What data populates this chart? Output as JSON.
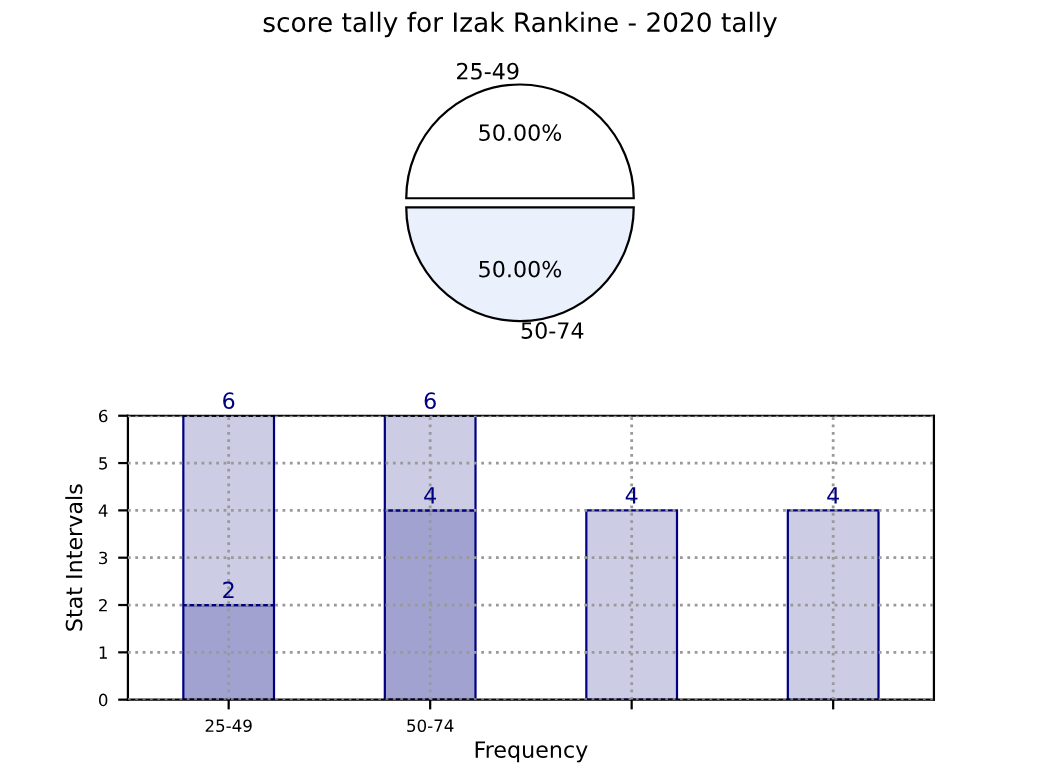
{
  "chart_data": [
    {
      "type": "pie",
      "title": "score tally for Izak Rankine - 2020 tally",
      "categories": [
        "25-49",
        "50-74"
      ],
      "values": [
        50,
        50
      ],
      "colors": [
        "#ffffff",
        "#eaf0fc"
      ],
      "value_labels": [
        "50.00%",
        "50.00%"
      ]
    },
    {
      "type": "bar",
      "xlabel": "Frequency",
      "ylabel": "Stat Intervals",
      "categories": [
        "25-49",
        "50-74",
        null,
        null
      ],
      "stacked": true,
      "series": [
        {
          "color": "#a2a2d0",
          "values": [
            2,
            4,
            null,
            null
          ],
          "value_labels": [
            "2",
            "4",
            null,
            null
          ]
        },
        {
          "color": "#ccccE4",
          "values": [
            4,
            2,
            4,
            4
          ]
        }
      ],
      "totals": [
        "6",
        "6",
        "4",
        "4"
      ],
      "ylim": [
        0,
        6
      ],
      "yticks": [
        0,
        1,
        2,
        3,
        4,
        5,
        6
      ],
      "grid": true
    }
  ]
}
